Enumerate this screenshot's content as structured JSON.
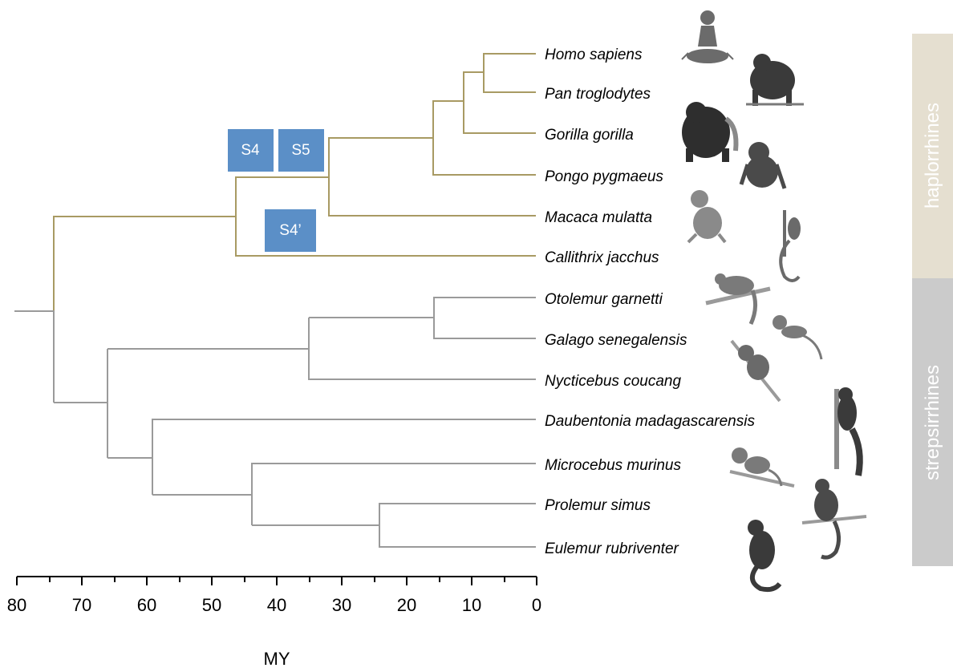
{
  "tree": {
    "species": [
      "Homo sapiens",
      "Pan troglodytes",
      "Gorilla gorilla",
      "Pongo pygmaeus",
      "Macaca mulatta",
      "Callithrix jacchus",
      "Otolemur garnetti",
      "Galago senegalensis",
      "Nycticebus coucang",
      "Daubentonia madagascarensis",
      "Microcebus murinus",
      "Prolemur simus",
      "Eulemur rubriventer"
    ],
    "events": [
      "S4",
      "S5",
      "S4’"
    ],
    "groups": [
      "haplorrhines",
      "strepsirrhines"
    ],
    "colors": {
      "haplorrhine_branch": "#a89a63",
      "strepsirrhine_branch": "#9a9a9a",
      "event_box": "#5b8fc7",
      "haplorrhine_band": "#e5dfd0",
      "strepsirrhine_band": "#cbcbcb"
    }
  },
  "axis": {
    "title": "MY",
    "ticks": [
      "80",
      "70",
      "60",
      "50",
      "40",
      "30",
      "20",
      "10",
      "0"
    ]
  }
}
